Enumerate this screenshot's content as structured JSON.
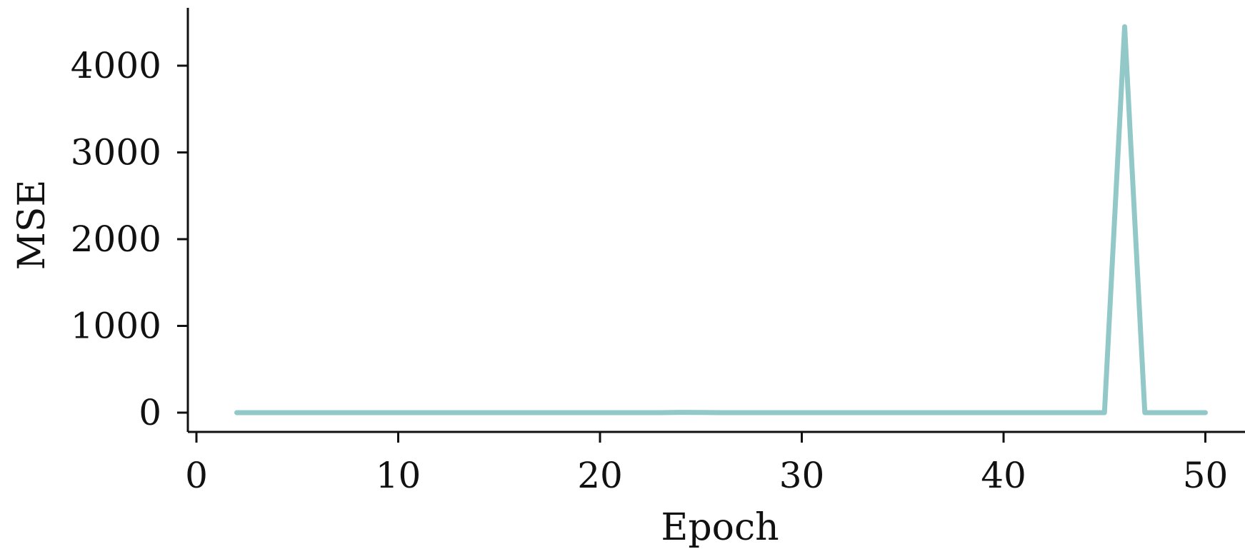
{
  "chart_data": {
    "type": "line",
    "xlabel": "Epoch",
    "ylabel": "MSE",
    "xlim": [
      -1,
      52
    ],
    "ylim": [
      -220,
      4700
    ],
    "xticks": [
      0,
      10,
      20,
      30,
      40,
      50
    ],
    "yticks": [
      0,
      1000,
      2000,
      3000,
      4000
    ],
    "grid": false,
    "series": [
      {
        "color": "#92c9c8",
        "x": [
          2,
          3,
          4,
          5,
          6,
          7,
          8,
          9,
          10,
          11,
          12,
          13,
          14,
          15,
          16,
          17,
          18,
          19,
          20,
          21,
          22,
          23,
          24,
          25,
          26,
          27,
          28,
          29,
          30,
          31,
          32,
          33,
          34,
          35,
          36,
          37,
          38,
          39,
          40,
          41,
          42,
          43,
          44,
          45,
          46,
          47,
          48,
          49,
          50
        ],
        "y": [
          0,
          0,
          0,
          0,
          0,
          0,
          0,
          0,
          0,
          0,
          0,
          0,
          0,
          0,
          0,
          0,
          0,
          0,
          0,
          0,
          0,
          0,
          3,
          2,
          0,
          0,
          0,
          0,
          0,
          0,
          0,
          0,
          0,
          0,
          0,
          0,
          0,
          0,
          0,
          0,
          0,
          0,
          0,
          0,
          4450,
          0,
          0,
          0,
          0
        ]
      }
    ]
  }
}
